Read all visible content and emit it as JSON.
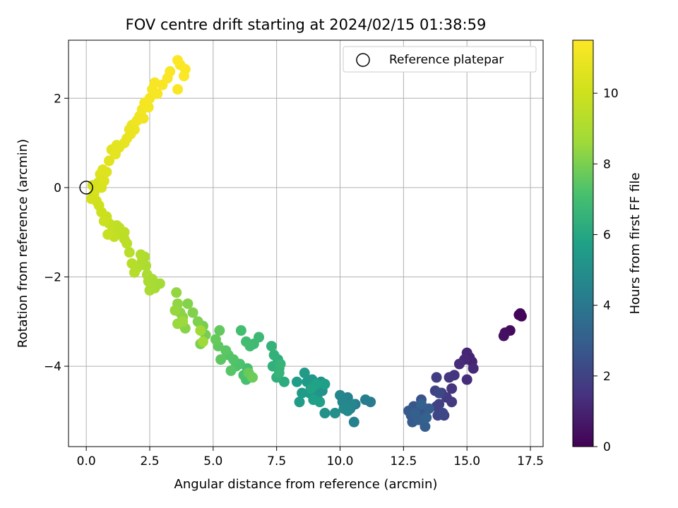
{
  "chart_data": {
    "type": "scatter",
    "title": "FOV centre drift starting at 2024/02/15 01:38:59",
    "xlabel": "Angular distance from reference (arcmin)",
    "ylabel": "Rotation from reference (arcmin)",
    "xlim": [
      -0.7,
      18.0
    ],
    "ylim": [
      -5.8,
      3.3
    ],
    "xticks": [
      0.0,
      2.5,
      5.0,
      7.5,
      10.0,
      12.5,
      15.0,
      17.5
    ],
    "xtick_labels": [
      "0.0",
      "2.5",
      "5.0",
      "7.5",
      "10.0",
      "12.5",
      "15.0",
      "17.5"
    ],
    "yticks": [
      -4,
      -2,
      0,
      2
    ],
    "ytick_labels": [
      "−4",
      "−2",
      "0",
      "2"
    ],
    "grid": true,
    "legend": {
      "position": "top-right",
      "entries": [
        "Reference platepar"
      ]
    },
    "reference_point": {
      "x": 0.0,
      "y": 0.0
    },
    "colorbar": {
      "label": "Hours from first FF file",
      "range": [
        0,
        11.5
      ],
      "ticks": [
        0,
        2,
        4,
        6,
        8,
        10
      ],
      "tick_labels": [
        "0",
        "2",
        "4",
        "6",
        "8",
        "10"
      ],
      "colormap": "viridis"
    },
    "points": [
      {
        "x": 17.1,
        "y": -2.82,
        "hours": 0.05
      },
      {
        "x": 17.15,
        "y": -2.88,
        "hours": 0.1
      },
      {
        "x": 17.05,
        "y": -2.85,
        "hours": 0.15
      },
      {
        "x": 16.7,
        "y": -3.2,
        "hours": 0.3
      },
      {
        "x": 16.5,
        "y": -3.25,
        "hours": 0.4
      },
      {
        "x": 16.45,
        "y": -3.32,
        "hours": 0.45
      },
      {
        "x": 15.2,
        "y": -3.9,
        "hours": 1.0
      },
      {
        "x": 15.1,
        "y": -3.8,
        "hours": 1.05
      },
      {
        "x": 15.0,
        "y": -3.7,
        "hours": 1.1
      },
      {
        "x": 14.9,
        "y": -3.85,
        "hours": 1.15
      },
      {
        "x": 15.25,
        "y": -4.05,
        "hours": 1.2
      },
      {
        "x": 14.7,
        "y": -3.95,
        "hours": 1.25
      },
      {
        "x": 15.0,
        "y": -4.3,
        "hours": 1.3
      },
      {
        "x": 14.5,
        "y": -4.2,
        "hours": 1.5
      },
      {
        "x": 14.4,
        "y": -4.5,
        "hours": 1.55
      },
      {
        "x": 14.3,
        "y": -4.25,
        "hours": 1.6
      },
      {
        "x": 14.4,
        "y": -4.8,
        "hours": 1.7
      },
      {
        "x": 14.2,
        "y": -4.7,
        "hours": 1.75
      },
      {
        "x": 13.8,
        "y": -4.25,
        "hours": 1.8
      },
      {
        "x": 14.0,
        "y": -4.6,
        "hours": 1.85
      },
      {
        "x": 13.9,
        "y": -4.85,
        "hours": 1.9
      },
      {
        "x": 13.75,
        "y": -4.55,
        "hours": 1.95
      },
      {
        "x": 13.8,
        "y": -4.9,
        "hours": 2.0
      },
      {
        "x": 14.1,
        "y": -5.1,
        "hours": 2.05
      },
      {
        "x": 13.85,
        "y": -5.1,
        "hours": 2.1
      },
      {
        "x": 13.9,
        "y": -4.6,
        "hours": 2.15
      },
      {
        "x": 14.05,
        "y": -5.05,
        "hours": 2.2
      },
      {
        "x": 13.3,
        "y": -5.0,
        "hours": 2.5
      },
      {
        "x": 13.2,
        "y": -4.75,
        "hours": 2.55
      },
      {
        "x": 13.1,
        "y": -5.0,
        "hours": 2.6
      },
      {
        "x": 12.9,
        "y": -4.9,
        "hours": 2.65
      },
      {
        "x": 12.8,
        "y": -5.1,
        "hours": 2.7
      },
      {
        "x": 13.0,
        "y": -5.2,
        "hours": 2.75
      },
      {
        "x": 12.7,
        "y": -5.0,
        "hours": 2.8
      },
      {
        "x": 12.85,
        "y": -5.25,
        "hours": 2.85
      },
      {
        "x": 13.5,
        "y": -4.95,
        "hours": 2.9
      },
      {
        "x": 13.35,
        "y": -5.35,
        "hours": 2.95
      },
      {
        "x": 13.1,
        "y": -5.2,
        "hours": 3.0
      },
      {
        "x": 12.95,
        "y": -5.05,
        "hours": 3.05
      },
      {
        "x": 13.2,
        "y": -4.85,
        "hours": 3.1
      },
      {
        "x": 13.4,
        "y": -5.15,
        "hours": 3.15
      },
      {
        "x": 11.2,
        "y": -4.8,
        "hours": 4.2
      },
      {
        "x": 11.0,
        "y": -4.75,
        "hours": 4.25
      },
      {
        "x": 10.6,
        "y": -4.85,
        "hours": 4.3
      },
      {
        "x": 10.55,
        "y": -5.25,
        "hours": 4.35
      },
      {
        "x": 10.4,
        "y": -4.95,
        "hours": 4.4
      },
      {
        "x": 10.3,
        "y": -4.7,
        "hours": 4.45
      },
      {
        "x": 10.2,
        "y": -4.9,
        "hours": 4.5
      },
      {
        "x": 10.1,
        "y": -4.8,
        "hours": 4.55
      },
      {
        "x": 10.0,
        "y": -4.65,
        "hours": 4.6
      },
      {
        "x": 10.45,
        "y": -4.85,
        "hours": 4.65
      },
      {
        "x": 10.3,
        "y": -5.0,
        "hours": 4.7
      },
      {
        "x": 10.15,
        "y": -4.95,
        "hours": 4.75
      },
      {
        "x": 9.8,
        "y": -5.05,
        "hours": 5.0
      },
      {
        "x": 9.4,
        "y": -5.05,
        "hours": 5.05
      },
      {
        "x": 9.3,
        "y": -4.55,
        "hours": 5.1
      },
      {
        "x": 9.25,
        "y": -4.35,
        "hours": 5.15
      },
      {
        "x": 9.1,
        "y": -4.7,
        "hours": 5.2
      },
      {
        "x": 9.0,
        "y": -4.5,
        "hours": 5.25
      },
      {
        "x": 8.9,
        "y": -4.3,
        "hours": 5.3
      },
      {
        "x": 8.8,
        "y": -4.6,
        "hours": 5.35
      },
      {
        "x": 8.7,
        "y": -4.35,
        "hours": 5.4
      },
      {
        "x": 8.6,
        "y": -4.15,
        "hours": 5.45
      },
      {
        "x": 8.5,
        "y": -4.6,
        "hours": 5.5
      },
      {
        "x": 8.4,
        "y": -4.8,
        "hours": 5.55
      },
      {
        "x": 8.3,
        "y": -4.35,
        "hours": 5.6
      },
      {
        "x": 9.4,
        "y": -4.4,
        "hours": 5.65
      },
      {
        "x": 9.2,
        "y": -4.8,
        "hours": 5.7
      },
      {
        "x": 8.95,
        "y": -4.75,
        "hours": 5.75
      },
      {
        "x": 9.05,
        "y": -4.4,
        "hours": 5.8
      },
      {
        "x": 8.85,
        "y": -4.5,
        "hours": 5.85
      },
      {
        "x": 7.8,
        "y": -4.35,
        "hours": 6.2
      },
      {
        "x": 7.6,
        "y": -4.05,
        "hours": 6.25
      },
      {
        "x": 7.55,
        "y": -3.85,
        "hours": 6.3
      },
      {
        "x": 7.5,
        "y": -4.25,
        "hours": 6.35
      },
      {
        "x": 7.35,
        "y": -4.0,
        "hours": 6.4
      },
      {
        "x": 7.4,
        "y": -3.75,
        "hours": 6.45
      },
      {
        "x": 7.3,
        "y": -3.55,
        "hours": 6.5
      },
      {
        "x": 7.6,
        "y": -4.15,
        "hours": 6.55
      },
      {
        "x": 7.65,
        "y": -3.95,
        "hours": 6.6
      },
      {
        "x": 6.8,
        "y": -3.35,
        "hours": 6.8
      },
      {
        "x": 6.6,
        "y": -3.5,
        "hours": 6.85
      },
      {
        "x": 6.45,
        "y": -3.55,
        "hours": 6.9
      },
      {
        "x": 6.3,
        "y": -3.45,
        "hours": 6.95
      },
      {
        "x": 6.1,
        "y": -3.2,
        "hours": 7.0
      },
      {
        "x": 6.35,
        "y": -4.05,
        "hours": 7.05
      },
      {
        "x": 6.3,
        "y": -4.3,
        "hours": 7.1
      },
      {
        "x": 6.2,
        "y": -4.2,
        "hours": 7.15
      },
      {
        "x": 6.05,
        "y": -3.95,
        "hours": 7.2
      },
      {
        "x": 5.9,
        "y": -4.0,
        "hours": 7.25
      },
      {
        "x": 5.8,
        "y": -3.85,
        "hours": 7.3
      },
      {
        "x": 5.6,
        "y": -3.75,
        "hours": 7.35
      },
      {
        "x": 5.7,
        "y": -4.1,
        "hours": 7.4
      },
      {
        "x": 5.5,
        "y": -3.65,
        "hours": 7.45
      },
      {
        "x": 5.3,
        "y": -3.85,
        "hours": 7.5
      },
      {
        "x": 5.2,
        "y": -3.55,
        "hours": 7.55
      },
      {
        "x": 5.25,
        "y": -3.2,
        "hours": 7.6
      },
      {
        "x": 5.1,
        "y": -3.4,
        "hours": 7.65
      },
      {
        "x": 6.4,
        "y": -4.15,
        "hours": 7.7
      },
      {
        "x": 6.55,
        "y": -4.25,
        "hours": 7.75
      },
      {
        "x": 4.7,
        "y": -3.3,
        "hours": 7.9
      },
      {
        "x": 4.6,
        "y": -3.1,
        "hours": 7.95
      },
      {
        "x": 4.5,
        "y": -3.5,
        "hours": 8.0
      },
      {
        "x": 4.4,
        "y": -3.0,
        "hours": 8.05
      },
      {
        "x": 4.2,
        "y": -2.8,
        "hours": 8.1
      },
      {
        "x": 4.0,
        "y": -2.6,
        "hours": 8.15
      },
      {
        "x": 3.9,
        "y": -3.15,
        "hours": 8.2
      },
      {
        "x": 3.8,
        "y": -2.9,
        "hours": 8.25
      },
      {
        "x": 3.7,
        "y": -2.8,
        "hours": 8.3
      },
      {
        "x": 3.6,
        "y": -2.6,
        "hours": 8.35
      },
      {
        "x": 3.55,
        "y": -2.35,
        "hours": 8.4
      },
      {
        "x": 3.5,
        "y": -2.75,
        "hours": 8.45
      },
      {
        "x": 3.6,
        "y": -3.05,
        "hours": 8.5
      },
      {
        "x": 3.8,
        "y": -3.0,
        "hours": 8.55
      },
      {
        "x": 4.6,
        "y": -3.45,
        "hours": 8.6
      },
      {
        "x": 4.5,
        "y": -3.2,
        "hours": 8.65
      },
      {
        "x": 2.9,
        "y": -2.15,
        "hours": 8.75
      },
      {
        "x": 2.7,
        "y": -2.25,
        "hours": 8.8
      },
      {
        "x": 2.6,
        "y": -2.05,
        "hours": 8.85
      },
      {
        "x": 2.5,
        "y": -2.3,
        "hours": 8.9
      },
      {
        "x": 2.4,
        "y": -1.95,
        "hours": 8.95
      },
      {
        "x": 2.35,
        "y": -1.75,
        "hours": 9.0
      },
      {
        "x": 2.3,
        "y": -1.55,
        "hours": 9.05
      },
      {
        "x": 2.2,
        "y": -1.65,
        "hours": 9.1
      },
      {
        "x": 2.15,
        "y": -1.5,
        "hours": 9.15
      },
      {
        "x": 2.0,
        "y": -1.8,
        "hours": 9.2
      },
      {
        "x": 1.9,
        "y": -1.9,
        "hours": 9.25
      },
      {
        "x": 1.8,
        "y": -1.7,
        "hours": 9.3
      },
      {
        "x": 1.7,
        "y": -1.45,
        "hours": 9.35
      },
      {
        "x": 1.6,
        "y": -1.25,
        "hours": 9.4
      },
      {
        "x": 1.5,
        "y": -1.0,
        "hours": 9.45
      },
      {
        "x": 1.4,
        "y": -1.05,
        "hours": 9.5
      },
      {
        "x": 1.3,
        "y": -0.95,
        "hours": 9.55
      },
      {
        "x": 1.2,
        "y": -0.85,
        "hours": 9.6
      },
      {
        "x": 1.1,
        "y": -1.1,
        "hours": 9.65
      },
      {
        "x": 1.0,
        "y": -1.0,
        "hours": 9.7
      },
      {
        "x": 0.9,
        "y": -0.8,
        "hours": 9.75
      },
      {
        "x": 0.85,
        "y": -1.05,
        "hours": 9.8
      },
      {
        "x": 0.8,
        "y": -0.65,
        "hours": 9.85
      },
      {
        "x": 0.7,
        "y": -0.75,
        "hours": 9.9
      },
      {
        "x": 0.6,
        "y": -0.55,
        "hours": 9.95
      },
      {
        "x": 0.5,
        "y": -0.4,
        "hours": 10.0
      },
      {
        "x": 0.4,
        "y": -0.3,
        "hours": 10.05
      },
      {
        "x": 0.3,
        "y": -0.15,
        "hours": 10.1
      },
      {
        "x": 0.2,
        "y": -0.25,
        "hours": 10.15
      },
      {
        "x": 1.3,
        "y": -0.9,
        "hours": 9.55
      },
      {
        "x": 1.5,
        "y": -1.15,
        "hours": 9.5
      },
      {
        "x": 2.45,
        "y": -2.1,
        "hours": 8.9
      },
      {
        "x": 0.25,
        "y": 0.05,
        "hours": 10.2
      },
      {
        "x": 0.35,
        "y": -0.05,
        "hours": 10.25
      },
      {
        "x": 0.45,
        "y": 0.1,
        "hours": 10.3
      },
      {
        "x": 0.6,
        "y": 0.0,
        "hours": 10.35
      },
      {
        "x": 0.7,
        "y": 0.15,
        "hours": 10.4
      },
      {
        "x": 0.55,
        "y": 0.3,
        "hours": 10.45
      },
      {
        "x": 0.8,
        "y": 0.35,
        "hours": 10.5
      },
      {
        "x": 0.65,
        "y": 0.4,
        "hours": 10.55
      },
      {
        "x": 0.9,
        "y": 0.6,
        "hours": 10.6
      },
      {
        "x": 1.0,
        "y": 0.85,
        "hours": 10.65
      },
      {
        "x": 1.15,
        "y": 0.75,
        "hours": 10.7
      },
      {
        "x": 1.3,
        "y": 0.9,
        "hours": 10.75
      },
      {
        "x": 1.5,
        "y": 1.0,
        "hours": 10.8
      },
      {
        "x": 1.6,
        "y": 1.1,
        "hours": 10.85
      },
      {
        "x": 1.75,
        "y": 1.2,
        "hours": 10.9
      },
      {
        "x": 1.8,
        "y": 1.4,
        "hours": 10.95
      },
      {
        "x": 1.9,
        "y": 1.3,
        "hours": 11.0
      },
      {
        "x": 2.0,
        "y": 1.5,
        "hours": 11.05
      },
      {
        "x": 2.1,
        "y": 1.6,
        "hours": 11.1
      },
      {
        "x": 2.2,
        "y": 1.75,
        "hours": 11.15
      },
      {
        "x": 2.3,
        "y": 1.9,
        "hours": 11.2
      },
      {
        "x": 2.45,
        "y": 1.8,
        "hours": 11.22
      },
      {
        "x": 2.5,
        "y": 2.0,
        "hours": 11.25
      },
      {
        "x": 2.6,
        "y": 2.2,
        "hours": 11.28
      },
      {
        "x": 2.7,
        "y": 2.35,
        "hours": 11.3
      },
      {
        "x": 2.8,
        "y": 2.1,
        "hours": 11.32
      },
      {
        "x": 3.0,
        "y": 2.3,
        "hours": 11.34
      },
      {
        "x": 3.2,
        "y": 2.45,
        "hours": 11.36
      },
      {
        "x": 3.3,
        "y": 2.6,
        "hours": 11.38
      },
      {
        "x": 3.6,
        "y": 2.2,
        "hours": 11.4
      },
      {
        "x": 3.7,
        "y": 2.75,
        "hours": 11.42
      },
      {
        "x": 3.9,
        "y": 2.65,
        "hours": 11.44
      },
      {
        "x": 3.85,
        "y": 2.5,
        "hours": 11.45
      },
      {
        "x": 3.6,
        "y": 2.85,
        "hours": 11.46
      },
      {
        "x": 1.2,
        "y": 0.95,
        "hours": 10.72
      },
      {
        "x": 1.7,
        "y": 1.3,
        "hours": 10.88
      },
      {
        "x": 2.25,
        "y": 1.55,
        "hours": 11.12
      }
    ]
  }
}
